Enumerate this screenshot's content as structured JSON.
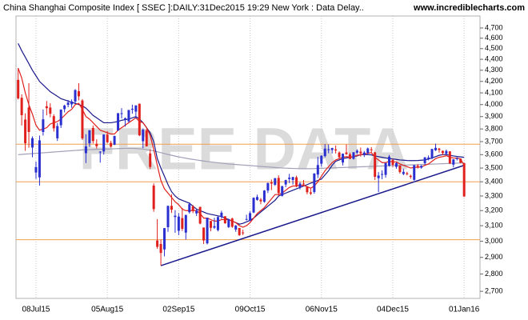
{
  "chart_data": {
    "type": "candlestick",
    "title": "China Shanghai Composite Index [ SSEC ]:DAILY:31Dec2015 19:29 New York : Data Delay..",
    "source": "www.incrediblecharts.com",
    "watermark": "FREE DATA",
    "log_scale": true,
    "ylim": [
      2660,
      4820
    ],
    "yticks": [
      {
        "value": 2700,
        "label": "2,700"
      },
      {
        "value": 2800,
        "label": "2,800"
      },
      {
        "value": 2900,
        "label": "2,900"
      },
      {
        "value": 3000,
        "label": "3,000"
      },
      {
        "value": 3100,
        "label": "3,100"
      },
      {
        "value": 3200,
        "label": "3,200"
      },
      {
        "value": 3300,
        "label": "3,300"
      },
      {
        "value": 3400,
        "label": "3,400"
      },
      {
        "value": 3500,
        "label": "3,500"
      },
      {
        "value": 3600,
        "label": "3,600"
      },
      {
        "value": 3700,
        "label": "3,700"
      },
      {
        "value": 3800,
        "label": "3,800"
      },
      {
        "value": 3900,
        "label": "3,900"
      },
      {
        "value": 4000,
        "label": "4,000"
      },
      {
        "value": 4100,
        "label": "4,100"
      },
      {
        "value": 4200,
        "label": "4,200"
      },
      {
        "value": 4300,
        "label": "4,300"
      },
      {
        "value": 4400,
        "label": "4,400"
      },
      {
        "value": 4500,
        "label": "4,500"
      },
      {
        "value": 4600,
        "label": "4,600"
      },
      {
        "value": 4700,
        "label": "4,700"
      }
    ],
    "categories": [
      null,
      null,
      null,
      null,
      null,
      "08Jul15",
      null,
      null,
      null,
      null,
      null,
      null,
      null,
      null,
      null,
      null,
      null,
      null,
      null,
      null,
      null,
      null,
      null,
      null,
      null,
      "05Aug15",
      null,
      null,
      null,
      null,
      null,
      null,
      null,
      null,
      null,
      null,
      null,
      null,
      null,
      null,
      null,
      null,
      null,
      null,
      null,
      "02Sep15",
      null,
      null,
      null,
      null,
      null,
      null,
      null,
      null,
      null,
      null,
      null,
      null,
      null,
      null,
      null,
      null,
      null,
      null,
      null,
      "09Oct15",
      null,
      null,
      null,
      null,
      null,
      null,
      null,
      null,
      null,
      null,
      null,
      null,
      null,
      null,
      null,
      null,
      null,
      null,
      null,
      "06Nov15",
      null,
      null,
      null,
      null,
      null,
      null,
      null,
      null,
      null,
      null,
      null,
      null,
      null,
      null,
      null,
      null,
      null,
      null,
      null,
      "04Dec15",
      null,
      null,
      null,
      null,
      null,
      null,
      null,
      null,
      null,
      null,
      null,
      null,
      null,
      null,
      null,
      null,
      null,
      null,
      null,
      "01Jan16"
    ],
    "up_color": "#2a2fd0",
    "down_color": "#e0201c",
    "open": [
      4214,
      4058,
      3876,
      3976,
      3654,
      3467,
      3432,
      3776,
      3986,
      3975,
      3904,
      3726,
      3830,
      3962,
      3998,
      4002,
      4026,
      4114,
      4035,
      3611,
      3687,
      3808,
      3683,
      3621,
      3624,
      3755,
      3690,
      3676,
      3789,
      3925,
      3878,
      3862,
      3957,
      3941,
      4007,
      3703,
      3788,
      3609,
      3373,
      3005,
      2983,
      2949,
      3090,
      3232,
      3157,
      3067,
      3150,
      3055,
      3189,
      3228,
      3181,
      3225,
      3088,
      2987,
      3131,
      3087,
      3071,
      3158,
      3162,
      3091,
      3147,
      3075,
      3085,
      3056,
      3143,
      3132,
      3187,
      3273,
      3275,
      3260,
      3338,
      3396,
      3379,
      3428,
      3301,
      3381,
      3420,
      3413,
      3432,
      3362,
      3387,
      3367,
      3325,
      3328,
      3452,
      3532,
      3589,
      3640,
      3635,
      3640,
      3616,
      3541,
      3617,
      3602,
      3568,
      3615,
      3623,
      3600,
      3612,
      3640,
      3617,
      3426,
      3454,
      3450,
      3518,
      3560,
      3509,
      3518,
      3456,
      3462,
      3443,
      3414,
      3518,
      3503,
      3536,
      3569,
      3577,
      3633,
      3646,
      3629,
      3606,
      3625,
      3525,
      3567,
      3570,
      3536
    ],
    "high": [
      4317,
      4087,
      3927,
      4184,
      3741,
      3548,
      3748,
      3959,
      4030,
      4011,
      3919,
      3848,
      3960,
      3999,
      4039,
      4044,
      4132,
      4184,
      4046,
      3758,
      3792,
      3828,
      3718,
      3626,
      3757,
      3783,
      3707,
      3747,
      3930,
      3970,
      3893,
      3955,
      3999,
      3994,
      4009,
      3804,
      3802,
      3640,
      3389,
      3143,
      3010,
      3085,
      3233,
      3312,
      3203,
      3183,
      3218,
      3172,
      3256,
      3238,
      3207,
      3226,
      3088,
      3153,
      3131,
      3152,
      3161,
      3199,
      3163,
      3146,
      3153,
      3104,
      3086,
      3074,
      3172,
      3195,
      3290,
      3309,
      3286,
      3341,
      3394,
      3416,
      3427,
      3447,
      3371,
      3415,
      3457,
      3436,
      3444,
      3398,
      3413,
      3370,
      3352,
      3462,
      3583,
      3596,
      3681,
      3678,
      3653,
      3670,
      3625,
      3609,
      3678,
      3615,
      3619,
      3641,
      3654,
      3628,
      3654,
      3658,
      3621,
      3470,
      3483,
      3538,
      3598,
      3568,
      3544,
      3520,
      3495,
      3473,
      3452,
      3522,
      3529,
      3522,
      3581,
      3594,
      3645,
      3684,
      3651,
      3631,
      3639,
      3626,
      3567,
      3580,
      3572,
      3538
    ],
    "low": [
      4043,
      3828,
      3629,
      3653,
      3580,
      3421,
      3373,
      3748,
      3910,
      3894,
      3779,
      3705,
      3808,
      3935,
      3978,
      3973,
      4007,
      4036,
      3713,
      3537,
      3660,
      3685,
      3647,
      3540,
      3600,
      3688,
      3654,
      3673,
      3783,
      3885,
      3819,
      3852,
      3924,
      3884,
      3743,
      3649,
      3661,
      3491,
      3192,
      2953,
      2851,
      2906,
      3060,
      3184,
      3054,
      3039,
      3066,
      3011,
      3180,
      3183,
      3164,
      3109,
      2983,
      2980,
      3064,
      3079,
      3063,
      3145,
      3112,
      3085,
      3086,
      3060,
      3034,
      3039,
      3134,
      3130,
      3183,
      3268,
      3243,
      3253,
      3321,
      3341,
      3371,
      3303,
      3296,
      3362,
      3391,
      3380,
      3361,
      3346,
      3369,
      3312,
      3306,
      3316,
      3427,
      3509,
      3579,
      3610,
      3609,
      3609,
      3571,
      3519,
      3598,
      3566,
      3563,
      3604,
      3585,
      3582,
      3603,
      3618,
      3413,
      3327,
      3418,
      3430,
      3510,
      3508,
      3495,
      3460,
      3448,
      3446,
      3422,
      3408,
      3496,
      3495,
      3524,
      3557,
      3565,
      3628,
      3615,
      3595,
      3601,
      3529,
      3505,
      3556,
      3535,
      3293
    ],
    "close": [
      4053,
      3912,
      3687,
      3776,
      3727,
      3507,
      3710,
      3878,
      3970,
      3924,
      3805,
      3823,
      3958,
      3992,
      4017,
      4026,
      4124,
      4070,
      3725,
      3663,
      3789,
      3705,
      3664,
      3623,
      3756,
      3695,
      3661,
      3744,
      3928,
      3928,
      3887,
      3955,
      3965,
      3993,
      3749,
      3794,
      3664,
      3508,
      3210,
      2965,
      2927,
      3084,
      3232,
      3206,
      3166,
      3160,
      3080,
      3171,
      3243,
      3198,
      3200,
      3114,
      3005,
      3152,
      3086,
      3097,
      3157,
      3186,
      3116,
      3143,
      3093,
      3101,
      3039,
      3053,
      3144,
      3183,
      3288,
      3293,
      3263,
      3338,
      3391,
      3387,
      3426,
      3320,
      3369,
      3412,
      3430,
      3434,
      3375,
      3387,
      3383,
      3326,
      3316,
      3460,
      3522,
      3591,
      3646,
      3641,
      3650,
      3632,
      3580,
      3607,
      3604,
      3568,
      3618,
      3630,
      3610,
      3616,
      3647,
      3635,
      3436,
      3445,
      3456,
      3537,
      3585,
      3524,
      3536,
      3470,
      3472,
      3455,
      3435,
      3521,
      3510,
      3516,
      3580,
      3578,
      3643,
      3652,
      3636,
      3612,
      3628,
      3534,
      3564,
      3573,
      3539,
      3297
    ],
    "overlays": [
      {
        "color": "#a0a0b8",
        "values": [
          3600,
          3602,
          3604,
          3606,
          3608,
          3610,
          3612,
          3614,
          3616,
          3618,
          3620,
          3622,
          3624,
          3626,
          3628,
          3630,
          3632,
          3634,
          3636,
          3637,
          3638,
          3639,
          3640,
          3641,
          3642,
          3643,
          3644,
          3645,
          3646,
          3647,
          3648,
          3648,
          3648,
          3647,
          3645,
          3642,
          3638,
          3634,
          3628,
          3622,
          3615,
          3608,
          3601,
          3595,
          3589,
          3583,
          3578,
          3573,
          3568,
          3564,
          3560,
          3556,
          3552,
          3548,
          3545,
          3542,
          3539,
          3536,
          3533,
          3530,
          3528,
          3526,
          3524,
          3522,
          3520,
          3518,
          3516,
          3514,
          3512,
          3510,
          3508,
          3506,
          3504,
          3502,
          3500,
          3499,
          3498,
          3497,
          3496,
          3495,
          3495,
          3495,
          3495,
          3496,
          3497,
          3498,
          3499,
          3500,
          3501,
          3502,
          3503,
          3504,
          3505,
          3506,
          3507,
          3508,
          3509,
          3510,
          3511,
          3512,
          3513,
          3514,
          3515,
          3516,
          3517,
          3518,
          3519,
          3520,
          3521,
          3522,
          3523,
          3524,
          3525,
          3526,
          3527,
          3528,
          3529,
          3530,
          3531,
          3532,
          3533,
          3534,
          3535,
          3536,
          3537,
          3538
        ]
      },
      {
        "color": "#1a1a8c",
        "values": [
          4550,
          4480,
          4420,
          4360,
          4300,
          4250,
          4200,
          4170,
          4140,
          4110,
          4090,
          4070,
          4050,
          4040,
          4030,
          4020,
          4010,
          4000,
          3990,
          3970,
          3940,
          3910,
          3890,
          3870,
          3850,
          3850,
          3850,
          3855,
          3860,
          3870,
          3875,
          3880,
          3890,
          3900,
          3880,
          3850,
          3810,
          3770,
          3700,
          3570,
          3500,
          3440,
          3380,
          3330,
          3300,
          3280,
          3270,
          3260,
          3250,
          3230,
          3210,
          3200,
          3190,
          3180,
          3175,
          3170,
          3165,
          3160,
          3150,
          3140,
          3130,
          3120,
          3110,
          3115,
          3125,
          3135,
          3150,
          3170,
          3190,
          3210,
          3230,
          3250,
          3270,
          3300,
          3310,
          3320,
          3330,
          3340,
          3350,
          3360,
          3370,
          3380,
          3390,
          3400,
          3410,
          3420,
          3450,
          3480,
          3520,
          3550,
          3560,
          3570,
          3575,
          3580,
          3585,
          3590,
          3600,
          3600,
          3600,
          3598,
          3590,
          3585,
          3580,
          3575,
          3570,
          3567,
          3564,
          3560,
          3558,
          3556,
          3555,
          3555,
          3556,
          3558,
          3560,
          3567,
          3575,
          3585,
          3595,
          3600,
          3600,
          3595,
          3590,
          3586,
          3583,
          3580
        ]
      },
      {
        "color": "#e0201c",
        "values": [
          4320,
          4230,
          4100,
          4000,
          3920,
          3830,
          3790,
          3800,
          3810,
          3840,
          3850,
          3860,
          3880,
          3910,
          3940,
          3960,
          4000,
          4010,
          3960,
          3900,
          3880,
          3850,
          3820,
          3790,
          3780,
          3770,
          3760,
          3760,
          3790,
          3810,
          3830,
          3850,
          3870,
          3890,
          3860,
          3850,
          3810,
          3750,
          3640,
          3520,
          3410,
          3350,
          3320,
          3290,
          3260,
          3240,
          3210,
          3200,
          3200,
          3200,
          3200,
          3180,
          3150,
          3150,
          3140,
          3130,
          3130,
          3140,
          3140,
          3140,
          3130,
          3120,
          3100,
          3090,
          3100,
          3120,
          3150,
          3180,
          3200,
          3220,
          3250,
          3280,
          3310,
          3310,
          3320,
          3340,
          3360,
          3370,
          3370,
          3375,
          3375,
          3365,
          3355,
          3370,
          3400,
          3440,
          3480,
          3510,
          3540,
          3560,
          3570,
          3580,
          3585,
          3580,
          3585,
          3595,
          3600,
          3605,
          3610,
          3615,
          3580,
          3560,
          3540,
          3540,
          3550,
          3545,
          3545,
          3530,
          3520,
          3510,
          3500,
          3505,
          3505,
          3508,
          3520,
          3530,
          3550,
          3570,
          3580,
          3585,
          3592,
          3580,
          3575,
          3574,
          3568,
          3520
        ]
      }
    ],
    "levels": {
      "color": "#f0a050",
      "values": [
        3680,
        3400,
        3010
      ]
    },
    "trendline": {
      "color": "#1a1a8c",
      "x": [
        40,
        125
      ],
      "y": [
        2850,
        3520
      ]
    }
  }
}
